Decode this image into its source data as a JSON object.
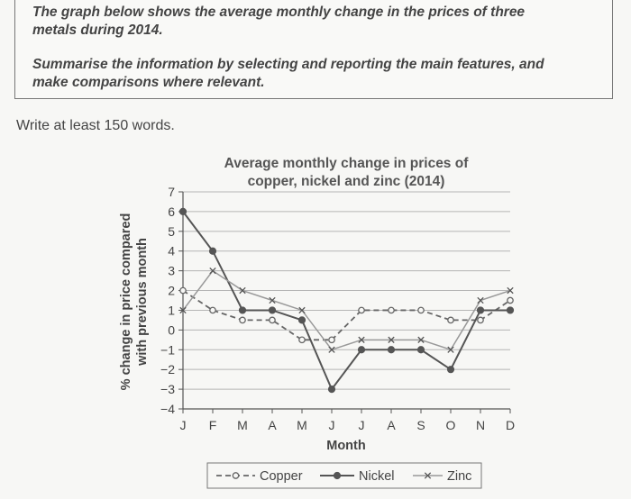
{
  "task": {
    "line1": "The graph below shows the average monthly change in the prices of three",
    "line2": "metals during 2014.",
    "line3": "Summarise the information by selecting and reporting the main features, and",
    "line4": "make comparisons where relevant."
  },
  "instruction": "Write at least 150 words.",
  "chart_data": {
    "type": "line",
    "title": [
      "Average monthly change in prices of",
      "copper, nickel and zinc (2014)"
    ],
    "xlabel": "Month",
    "ylabel": [
      "% change in price compared",
      "with previous month"
    ],
    "categories": [
      "J",
      "F",
      "M",
      "A",
      "M",
      "J",
      "J",
      "A",
      "S",
      "O",
      "N",
      "D"
    ],
    "ylim": [
      -4,
      7
    ],
    "yticks": [
      -4,
      -3,
      -2,
      -1,
      0,
      1,
      2,
      3,
      4,
      5,
      6,
      7
    ],
    "ytick_labels": [
      "−4",
      "−3",
      "−2",
      "−1",
      "0",
      "1",
      "2",
      "3",
      "4",
      "5",
      "6",
      "7"
    ],
    "grid": true,
    "legend_position": "bottom",
    "series": [
      {
        "name": "Copper",
        "style": "dashed-circle",
        "color": "#666666",
        "values": [
          2,
          1,
          0.5,
          0.5,
          -0.5,
          -0.5,
          1,
          1,
          1,
          0.5,
          0.5,
          1.5
        ]
      },
      {
        "name": "Nickel",
        "style": "solid-dot",
        "color": "#555555",
        "values": [
          6,
          4,
          1,
          1,
          0.5,
          -3,
          -1,
          -1,
          -1,
          -2,
          1,
          1
        ]
      },
      {
        "name": "Zinc",
        "style": "light-cross",
        "color": "#999999",
        "values": [
          1,
          3,
          2,
          1.5,
          1,
          -1,
          -0.5,
          -0.5,
          -0.5,
          -1,
          1.5,
          2
        ]
      }
    ]
  }
}
